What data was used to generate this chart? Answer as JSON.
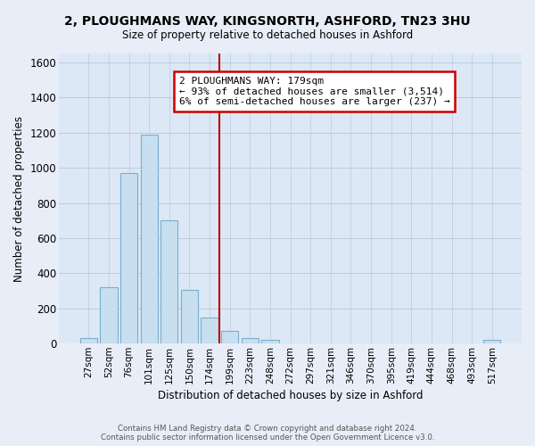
{
  "title": "2, PLOUGHMANS WAY, KINGSNORTH, ASHFORD, TN23 3HU",
  "subtitle": "Size of property relative to detached houses in Ashford",
  "xlabel": "Distribution of detached houses by size in Ashford",
  "ylabel": "Number of detached properties",
  "bar_labels": [
    "27sqm",
    "52sqm",
    "76sqm",
    "101sqm",
    "125sqm",
    "150sqm",
    "174sqm",
    "199sqm",
    "223sqm",
    "248sqm",
    "272sqm",
    "297sqm",
    "321sqm",
    "346sqm",
    "370sqm",
    "395sqm",
    "419sqm",
    "444sqm",
    "468sqm",
    "493sqm",
    "517sqm"
  ],
  "bar_heights": [
    30,
    320,
    970,
    1190,
    700,
    305,
    150,
    70,
    30,
    20,
    0,
    0,
    0,
    0,
    0,
    0,
    0,
    0,
    0,
    0,
    20
  ],
  "bar_color": "#c8dff0",
  "bar_edge_color": "#7aaed0",
  "vline_color": "#bb0000",
  "vline_x_index": 6,
  "annotation_title": "2 PLOUGHMANS WAY: 179sqm",
  "annotation_line1": "← 93% of detached houses are smaller (3,514)",
  "annotation_line2": "6% of semi-detached houses are larger (237) →",
  "annotation_box_color": "#ffffff",
  "annotation_box_edge": "#cc0000",
  "ylim": [
    0,
    1650
  ],
  "yticks": [
    0,
    200,
    400,
    600,
    800,
    1000,
    1200,
    1400,
    1600
  ],
  "footer_line1": "Contains HM Land Registry data © Crown copyright and database right 2024.",
  "footer_line2": "Contains public sector information licensed under the Open Government Licence v3.0.",
  "bg_color": "#e8eef8",
  "plot_bg_color": "#dce8f5"
}
